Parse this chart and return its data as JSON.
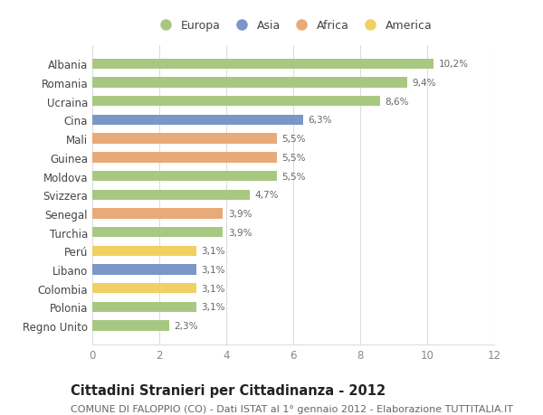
{
  "categories": [
    "Albania",
    "Romania",
    "Ucraina",
    "Cina",
    "Mali",
    "Guinea",
    "Moldova",
    "Svizzera",
    "Senegal",
    "Turchia",
    "Perú",
    "Libano",
    "Colombia",
    "Polonia",
    "Regno Unito"
  ],
  "values": [
    10.2,
    9.4,
    8.6,
    6.3,
    5.5,
    5.5,
    5.5,
    4.7,
    3.9,
    3.9,
    3.1,
    3.1,
    3.1,
    3.1,
    2.3
  ],
  "labels": [
    "10,2%",
    "9,4%",
    "8,6%",
    "6,3%",
    "5,5%",
    "5,5%",
    "5,5%",
    "4,7%",
    "3,9%",
    "3,9%",
    "3,1%",
    "3,1%",
    "3,1%",
    "3,1%",
    "2,3%"
  ],
  "continents": [
    "Europa",
    "Europa",
    "Europa",
    "Asia",
    "Africa",
    "Africa",
    "Europa",
    "Europa",
    "Africa",
    "Europa",
    "America",
    "Asia",
    "America",
    "Europa",
    "Europa"
  ],
  "colors": {
    "Europa": "#a8c882",
    "Asia": "#7b96c8",
    "Africa": "#e8aa78",
    "America": "#f0d060"
  },
  "legend_order": [
    "Europa",
    "Asia",
    "Africa",
    "America"
  ],
  "xlim": [
    0,
    12
  ],
  "xticks": [
    0,
    2,
    4,
    6,
    8,
    10,
    12
  ],
  "title": "Cittadini Stranieri per Cittadinanza - 2012",
  "subtitle": "COMUNE DI FALOPPIO (CO) - Dati ISTAT al 1° gennaio 2012 - Elaborazione TUTTITALIA.IT",
  "title_fontsize": 10.5,
  "subtitle_fontsize": 8,
  "bar_height": 0.55,
  "bg_color": "#ffffff",
  "grid_color": "#dddddd",
  "label_color": "#666666",
  "tick_color": "#888888"
}
